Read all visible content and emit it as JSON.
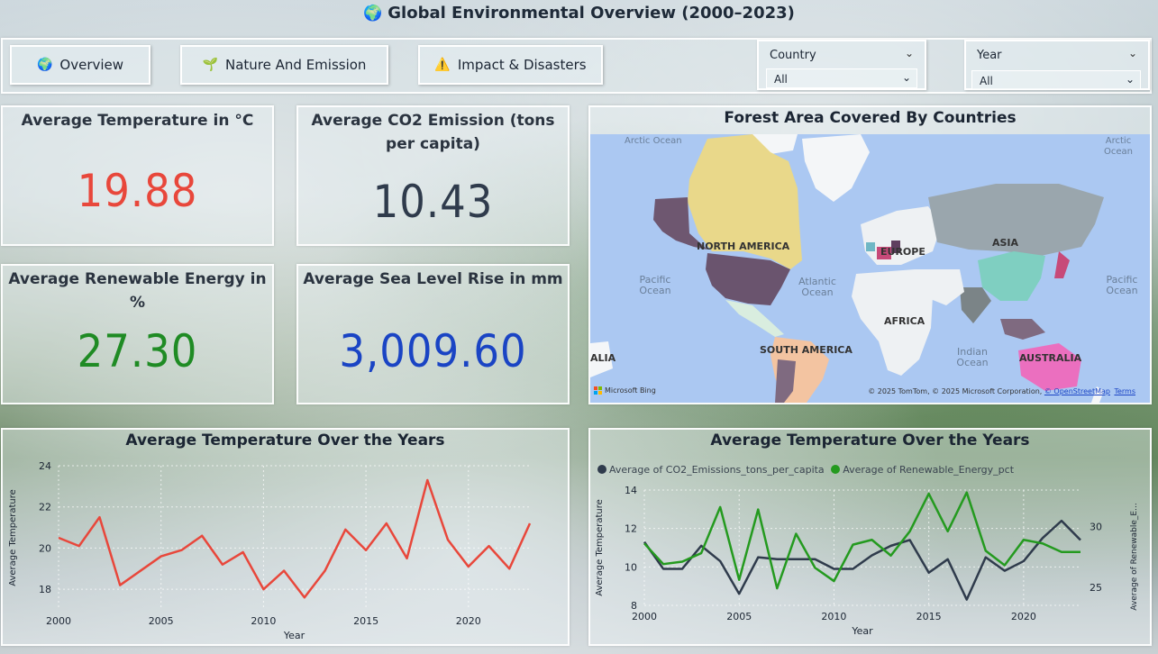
{
  "header": {
    "icon": "globe-icon",
    "title": "Global Environmental Overview (2000–2023)"
  },
  "nav": {
    "overview_label": "Overview",
    "nature_label": "Nature And Emission",
    "impact_label": "Impact & Disasters"
  },
  "filters": {
    "country_label": "Country",
    "country_value": "All",
    "year_label": "Year",
    "year_value": "All"
  },
  "kpis": {
    "temperature": {
      "title": "Average Temperature in °C",
      "value": "19.88",
      "color": "#e8473b"
    },
    "co2": {
      "title": "Average CO2 Emission (tons per capita)",
      "value": "10.43",
      "color": "#2f3b4c"
    },
    "renewable": {
      "title": "Average Renewable Energy in %",
      "value": "27.30",
      "color": "#1f8b24"
    },
    "sealevel": {
      "title": "Average Sea Level Rise in mm",
      "value": "3,009.60",
      "color": "#1a44c4"
    }
  },
  "map": {
    "title": "Forest Area Covered By Countries",
    "labels": {
      "arctic_left": "Arctic Ocean",
      "arctic_right": "Arctic Ocean",
      "north_america": "NORTH AMERICA",
      "europe": "EUROPE",
      "asia": "ASIA",
      "pacific_left": "Pacific Ocean",
      "atlantic": "Atlantic Ocean",
      "pacific_right": "Pacific Ocean",
      "africa": "AFRICA",
      "south_america": "SOUTH AMERICA",
      "australia": "AUSTRALIA",
      "alia": "ALIA",
      "indian": "Indian Ocean"
    },
    "brand": "Microsoft Bing",
    "copyright": "© 2025 TomTom, © 2025 Microsoft Corporation,",
    "osm_link": "© OpenStreetMap",
    "terms_link": "Terms"
  },
  "chart_data": [
    {
      "type": "line",
      "title": "Average Temperature Over the Years",
      "xlabel": "Year",
      "ylabel": "Average Temperature",
      "xlim": [
        2000,
        2023
      ],
      "ylim": [
        17,
        24
      ],
      "x_ticks": [
        "2000",
        "2005",
        "2010",
        "2015",
        "2020"
      ],
      "y_ticks": [
        "18",
        "20",
        "22",
        "24"
      ],
      "grid": true,
      "color": "#e8473b",
      "x": [
        2000,
        2001,
        2002,
        2003,
        2004,
        2005,
        2006,
        2007,
        2008,
        2009,
        2010,
        2011,
        2012,
        2013,
        2014,
        2015,
        2016,
        2017,
        2018,
        2019,
        2020,
        2021,
        2022,
        2023
      ],
      "values": [
        20.5,
        20.1,
        21.5,
        18.2,
        18.9,
        19.6,
        19.9,
        20.6,
        19.2,
        19.8,
        18.0,
        18.9,
        17.6,
        18.9,
        20.9,
        19.9,
        21.2,
        19.5,
        23.3,
        20.4,
        19.1,
        20.1,
        19.0,
        21.2
      ]
    },
    {
      "type": "line",
      "title": "Average Temperature Over the Years",
      "xlabel": "Year",
      "ylabel": "Average Temperature",
      "y2label": "Average of Renewable_E...",
      "xlim": [
        2000,
        2023
      ],
      "ylim": [
        8,
        14
      ],
      "y2lim": [
        23.5,
        33
      ],
      "x_ticks": [
        "2000",
        "2005",
        "2010",
        "2015",
        "2020"
      ],
      "y_ticks": [
        "8",
        "10",
        "12",
        "14"
      ],
      "y2_ticks": [
        "25",
        "30"
      ],
      "grid": true,
      "legend_position": "top-left",
      "x": [
        2000,
        2001,
        2002,
        2003,
        2004,
        2005,
        2006,
        2007,
        2008,
        2009,
        2010,
        2011,
        2012,
        2013,
        2014,
        2015,
        2016,
        2017,
        2018,
        2019,
        2020,
        2021,
        2022,
        2023
      ],
      "series": [
        {
          "name": "Average of CO2_Emissions_tons_per_capita",
          "axis": "left",
          "color": "#2f3b4c",
          "values": [
            11.3,
            9.9,
            9.9,
            11.1,
            10.3,
            8.6,
            10.5,
            10.4,
            10.4,
            10.4,
            9.9,
            9.9,
            10.6,
            11.1,
            11.4,
            9.7,
            10.4,
            8.3,
            10.5,
            9.8,
            10.3,
            11.5,
            12.4,
            11.4
          ]
        },
        {
          "name": "Average of Renewable_Energy_pct",
          "axis": "right",
          "color": "#249a1f",
          "values": [
            28.6,
            26.9,
            27.1,
            27.8,
            31.6,
            25.6,
            31.4,
            24.9,
            29.4,
            26.6,
            25.5,
            28.5,
            28.9,
            27.6,
            29.6,
            32.7,
            29.6,
            32.8,
            28.0,
            26.8,
            28.9,
            28.6,
            27.9,
            27.9
          ]
        }
      ]
    }
  ]
}
